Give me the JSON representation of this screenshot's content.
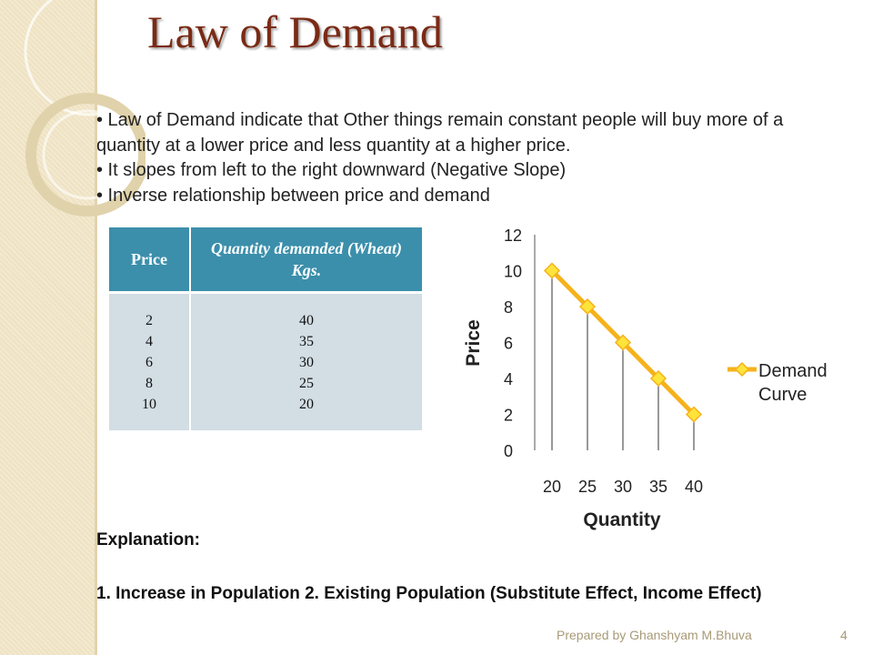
{
  "slide": {
    "title": "Law of Demand",
    "bullets": [
      "• Law of Demand indicate that Other things remain constant people will buy more of a quantity at a lower price and less quantity at a higher price.",
      "• It slopes from left to the right downward (Negative Slope)",
      "• Inverse relationship between price and demand"
    ]
  },
  "table": {
    "headers": [
      "Price",
      "Quantity demanded (Wheat) Kgs."
    ],
    "price": [
      "2",
      "4",
      "6",
      "8",
      "10"
    ],
    "quantity": [
      "40",
      "35",
      "30",
      "25",
      "20"
    ]
  },
  "chart_data": {
    "type": "line",
    "x": [
      20,
      25,
      30,
      35,
      40
    ],
    "series": [
      {
        "name": "Demand Curve",
        "values": [
          10,
          8,
          6,
          4,
          2
        ]
      }
    ],
    "xlabel": "Quantity",
    "ylabel": "Price",
    "y_ticks": [
      0,
      2,
      4,
      6,
      8,
      10,
      12
    ],
    "ylim": [
      0,
      12
    ],
    "legend_position": "right",
    "colors": {
      "line": "#f5b21b",
      "marker": "#fde33a",
      "drop_lines": "#333333"
    }
  },
  "explanation": {
    "heading": "Explanation:",
    "text": "1. Increase in Population 2. Existing Population (Substitute Effect, Income Effect)"
  },
  "footer": {
    "credit": "Prepared by Ghanshyam M.Bhuva",
    "page": "4"
  },
  "theme": {
    "accent": "#3b8fab",
    "title_color": "#7a2a15",
    "cell_bg": "#d2dde4",
    "strip_bg": "#efe3c4"
  }
}
